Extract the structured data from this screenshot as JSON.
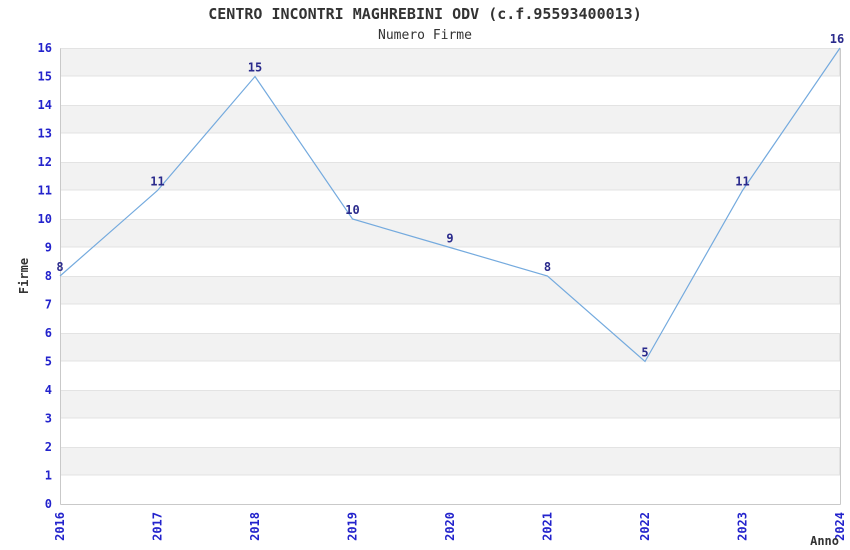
{
  "title": "CENTRO INCONTRI MAGHREBINI ODV (c.f.95593400013)",
  "subtitle": "Numero Firme",
  "chart_data": {
    "type": "line",
    "title": "CENTRO INCONTRI MAGHREBINI ODV (c.f.95593400013)",
    "subtitle": "Numero Firme",
    "x": [
      2016,
      2017,
      2018,
      2019,
      2020,
      2021,
      2022,
      2023,
      2024
    ],
    "series": [
      {
        "name": "Numero Firme",
        "values": [
          8,
          11,
          15,
          10,
          9,
          8,
          5,
          11,
          16
        ]
      }
    ],
    "xlabel": "Anno",
    "ylabel": "Firme",
    "ylim": [
      0,
      16
    ],
    "ytick_step": 1,
    "grid": "horizontal-alternating-bands",
    "legend": "none",
    "point_labels": true
  },
  "colors": {
    "line": "#74aade",
    "tick_label": "#2323cc",
    "point_label": "#2a2a8c",
    "band_fill": "#f2f2f2",
    "band_edge": "#e3e3e3",
    "axis_border": "#c9c9c9",
    "heading_text": "#333333",
    "background": "#ffffff"
  }
}
